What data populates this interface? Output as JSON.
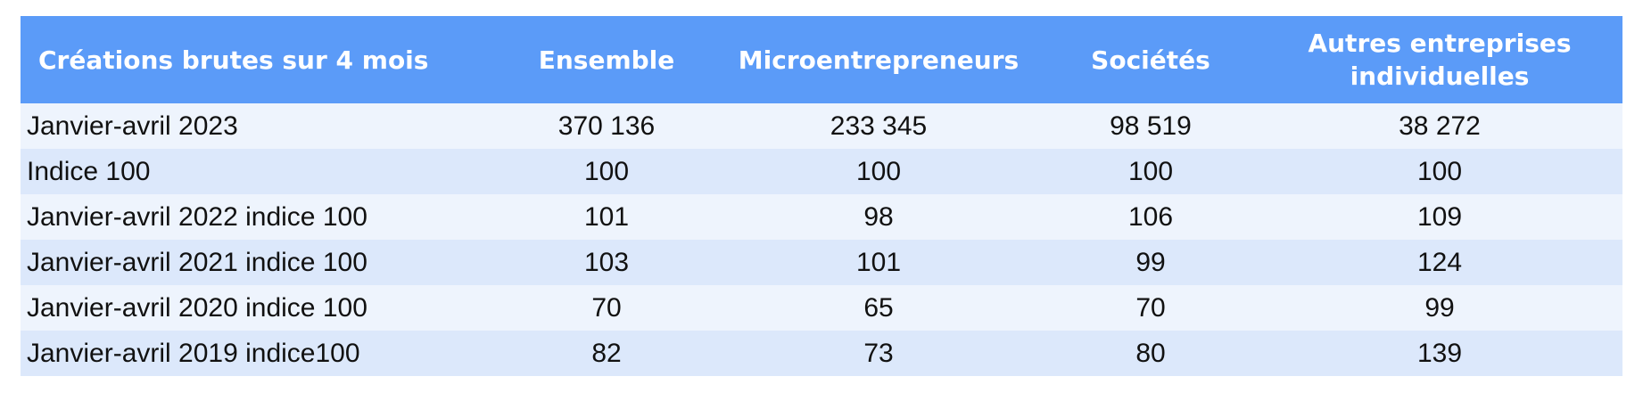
{
  "chart_data": {
    "type": "table",
    "columns": [
      "Créations brutes sur 4 mois",
      "Ensemble",
      "Microentrepreneurs",
      "Sociétés",
      "Autres entreprises individuelles"
    ],
    "header_lines": {
      "c0": "Créations brutes sur 4 mois",
      "c1": "Ensemble",
      "c2": "Microentrepreneurs",
      "c3": "Sociétés",
      "c4_line1": "Autres entreprises",
      "c4_line2": "individuelles"
    },
    "rows": [
      {
        "label": "Janvier-avril 2023",
        "values": [
          "370 136",
          "233 345",
          "98 519",
          "38 272"
        ]
      },
      {
        "label": "Indice 100",
        "values": [
          "100",
          "100",
          "100",
          "100"
        ]
      },
      {
        "label": "Janvier-avril 2022 indice 100",
        "values": [
          "101",
          "98",
          "106",
          "109"
        ]
      },
      {
        "label": "Janvier-avril 2021 indice 100",
        "values": [
          "103",
          "101",
          "99",
          "124"
        ]
      },
      {
        "label": "Janvier-avril 2020 indice 100",
        "values": [
          "70",
          "65",
          "70",
          "99"
        ]
      },
      {
        "label": "Janvier-avril 2019 indice100",
        "values": [
          "82",
          "73",
          "80",
          "139"
        ]
      }
    ]
  },
  "colors": {
    "header_bg": "#5b9bf8",
    "header_text": "#ffffff",
    "row_light": "#eef4fd",
    "row_dark": "#dce8fb",
    "cell_text": "#111111"
  }
}
